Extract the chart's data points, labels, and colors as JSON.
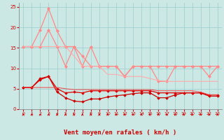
{
  "xlabel": "Vent moyen/en rafales ( km/h )",
  "bg_color": "#cce8e4",
  "grid_color": "#99cccc",
  "xlim": [
    -0.5,
    23.5
  ],
  "ylim": [
    0,
    26
  ],
  "xticks": [
    0,
    1,
    2,
    3,
    4,
    5,
    6,
    7,
    8,
    9,
    10,
    11,
    12,
    13,
    14,
    15,
    16,
    17,
    18,
    19,
    20,
    21,
    22,
    23
  ],
  "yticks": [
    0,
    5,
    10,
    15,
    20,
    25
  ],
  "lines": [
    {
      "x": [
        0,
        1,
        2,
        3,
        4,
        5,
        6,
        7,
        8,
        9,
        10,
        11,
        12,
        13,
        14,
        15,
        16,
        17,
        18,
        19,
        20,
        21,
        22,
        23
      ],
      "y": [
        15.3,
        15.3,
        19.4,
        24.6,
        19.1,
        15.3,
        15.3,
        10.5,
        15.3,
        10.5,
        10.5,
        10.5,
        8.0,
        10.5,
        10.5,
        10.5,
        10.5,
        10.5,
        10.5,
        10.5,
        10.5,
        10.5,
        10.5,
        10.5
      ],
      "color": "#ff8888",
      "lw": 0.9,
      "marker": "D",
      "ms": 2.0
    },
    {
      "x": [
        0,
        1,
        2,
        3,
        4,
        5,
        6,
        7,
        8,
        9,
        10,
        11,
        12,
        13,
        14,
        15,
        16,
        17,
        18,
        19,
        20,
        21,
        22,
        23
      ],
      "y": [
        15.3,
        15.3,
        15.3,
        19.4,
        15.3,
        10.5,
        15.3,
        13.0,
        10.5,
        10.5,
        10.5,
        10.5,
        8.0,
        10.5,
        10.5,
        10.5,
        6.8,
        6.8,
        10.5,
        10.5,
        10.5,
        10.5,
        8.0,
        10.5
      ],
      "color": "#ff8888",
      "lw": 0.9,
      "marker": "D",
      "ms": 2.0
    },
    {
      "x": [
        0,
        1,
        2,
        3,
        4,
        5,
        6,
        7,
        8,
        9,
        10,
        11,
        12,
        13,
        14,
        15,
        16,
        17,
        18,
        19,
        20,
        21,
        22,
        23
      ],
      "y": [
        15.3,
        15.3,
        15.3,
        15.3,
        15.3,
        15.3,
        13.0,
        10.5,
        10.5,
        10.5,
        8.5,
        8.5,
        8.0,
        8.0,
        8.0,
        7.5,
        7.0,
        6.8,
        6.8,
        6.8,
        6.8,
        6.8,
        6.8,
        6.8
      ],
      "color": "#ffaaaa",
      "lw": 0.8,
      "marker": null,
      "ms": 0
    },
    {
      "x": [
        0,
        1,
        2,
        3,
        4,
        5,
        6,
        7,
        8,
        9,
        10,
        11,
        12,
        13,
        14,
        15,
        16,
        17,
        18,
        19,
        20,
        21,
        22,
        23
      ],
      "y": [
        5.3,
        5.3,
        7.5,
        8.0,
        4.2,
        2.8,
        2.0,
        1.8,
        2.5,
        2.5,
        3.0,
        3.3,
        3.5,
        3.8,
        4.0,
        4.0,
        2.8,
        2.8,
        3.5,
        4.0,
        4.0,
        4.0,
        3.2,
        3.2
      ],
      "color": "#cc0000",
      "lw": 0.9,
      "marker": "D",
      "ms": 1.8
    },
    {
      "x": [
        0,
        1,
        2,
        3,
        4,
        5,
        6,
        7,
        8,
        9,
        10,
        11,
        12,
        13,
        14,
        15,
        16,
        17,
        18,
        19,
        20,
        21,
        22,
        23
      ],
      "y": [
        5.3,
        5.3,
        7.2,
        8.0,
        5.0,
        4.0,
        4.2,
        4.0,
        4.5,
        4.5,
        4.5,
        4.5,
        4.5,
        4.5,
        4.5,
        4.5,
        4.0,
        4.0,
        4.0,
        4.0,
        4.0,
        4.0,
        3.5,
        3.5
      ],
      "color": "#dd0000",
      "lw": 0.9,
      "marker": "D",
      "ms": 1.8
    },
    {
      "x": [
        0,
        1,
        2,
        3,
        4,
        5,
        6,
        7,
        8,
        9,
        10,
        11,
        12,
        13,
        14,
        15,
        16,
        17,
        18,
        19,
        20,
        21,
        22,
        23
      ],
      "y": [
        5.3,
        5.3,
        5.3,
        5.3,
        5.3,
        5.0,
        4.8,
        4.8,
        4.8,
        4.8,
        4.8,
        4.8,
        4.8,
        4.8,
        4.8,
        4.8,
        4.5,
        4.5,
        4.5,
        4.5,
        4.5,
        4.2,
        3.5,
        3.5
      ],
      "color": "#ee4444",
      "lw": 0.7,
      "marker": null,
      "ms": 0
    }
  ],
  "wind_dirs": [
    90,
    315,
    45,
    90,
    90,
    90,
    90,
    315,
    90,
    315,
    90,
    315,
    90,
    315,
    90,
    315,
    45,
    45,
    90,
    90,
    90,
    90,
    315,
    135
  ],
  "arrow_color": "#cc0000"
}
